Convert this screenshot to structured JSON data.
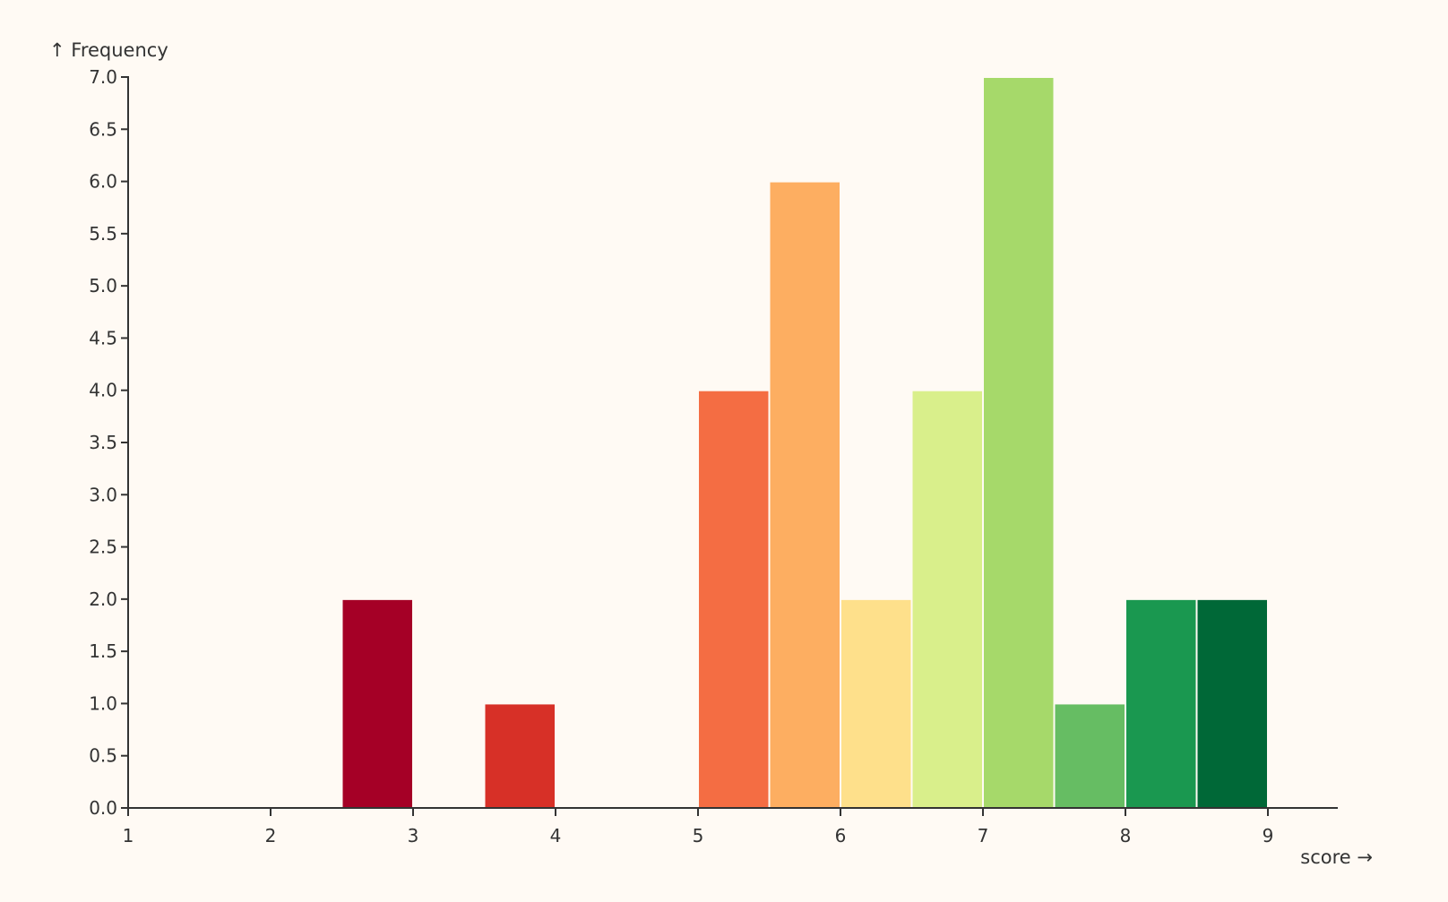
{
  "chart_data": {
    "type": "bar",
    "title": "",
    "xlabel": "score →",
    "ylabel": "↑ Frequency",
    "xlim": [
      1,
      9.5
    ],
    "ylim": [
      0,
      7
    ],
    "x_ticks": [
      1,
      2,
      3,
      4,
      5,
      6,
      7,
      8,
      9
    ],
    "y_ticks": [
      "0.0",
      "0.5",
      "1.0",
      "1.5",
      "2.0",
      "2.5",
      "3.0",
      "3.5",
      "4.0",
      "4.5",
      "5.0",
      "5.5",
      "6.0",
      "6.5",
      "7.0"
    ],
    "grid": false,
    "bins": [
      {
        "x0": 2.5,
        "x1": 3.0,
        "value": 2,
        "color": "#a50026"
      },
      {
        "x0": 3.5,
        "x1": 4.0,
        "value": 1,
        "color": "#d73027"
      },
      {
        "x0": 5.0,
        "x1": 5.5,
        "value": 4,
        "color": "#f46d43"
      },
      {
        "x0": 5.5,
        "x1": 6.0,
        "value": 6,
        "color": "#fdae61"
      },
      {
        "x0": 6.0,
        "x1": 6.5,
        "value": 2,
        "color": "#fee08b"
      },
      {
        "x0": 6.5,
        "x1": 7.0,
        "value": 4,
        "color": "#d9ef8b"
      },
      {
        "x0": 7.0,
        "x1": 7.5,
        "value": 7,
        "color": "#a6d96a"
      },
      {
        "x0": 7.5,
        "x1": 8.0,
        "value": 1,
        "color": "#66bd63"
      },
      {
        "x0": 8.0,
        "x1": 8.5,
        "value": 2,
        "color": "#1a9850"
      },
      {
        "x0": 8.5,
        "x1": 9.0,
        "value": 2,
        "color": "#006837"
      }
    ]
  }
}
